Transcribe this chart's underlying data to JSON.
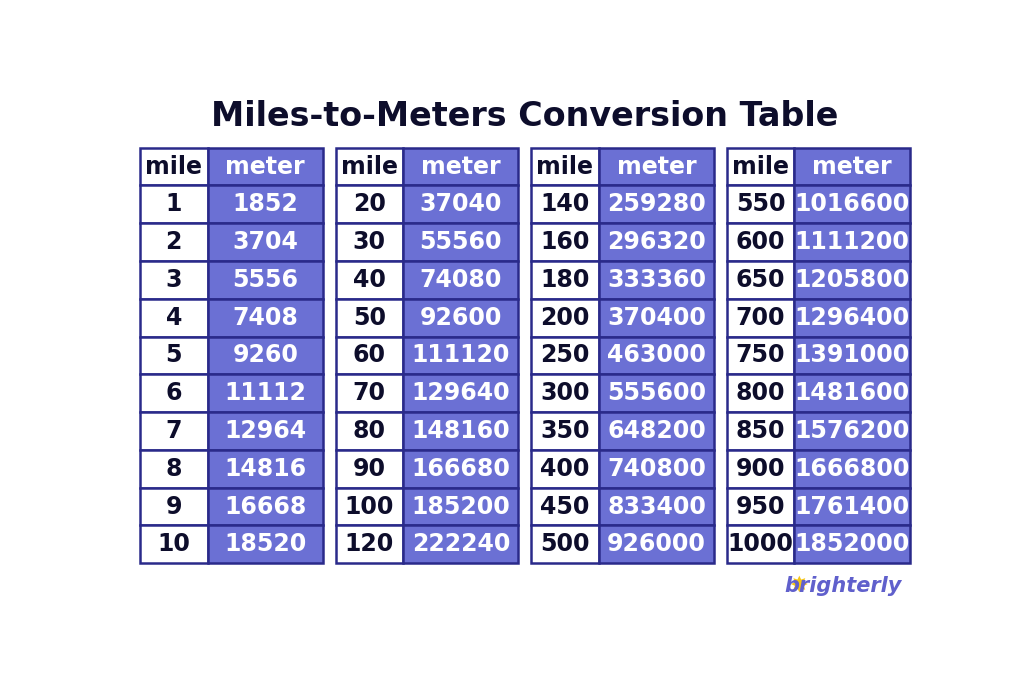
{
  "title": "Miles-to-Meters Conversion Table",
  "title_fontsize": 24,
  "title_fontweight": "bold",
  "title_color": "#0d0d2b",
  "bg_color": "#ffffff",
  "header_bg_mile": "#ffffff",
  "header_bg_meter": "#6b70d4",
  "header_text_mile_color": "#0d0d2b",
  "header_text_meter_color": "#ffffff",
  "cell_bg_mile": "#ffffff",
  "cell_bg_meter": "#6b70d4",
  "cell_text_mile_color": "#0d0d2b",
  "cell_text_meter_color": "#ffffff",
  "border_color": "#2a2a8a",
  "tables": [
    {
      "miles": [
        1,
        2,
        3,
        4,
        5,
        6,
        7,
        8,
        9,
        10
      ],
      "meters": [
        1852,
        3704,
        5556,
        7408,
        9260,
        11112,
        12964,
        14816,
        16668,
        18520
      ]
    },
    {
      "miles": [
        20,
        30,
        40,
        50,
        60,
        70,
        80,
        90,
        100,
        120
      ],
      "meters": [
        37040,
        55560,
        74080,
        92600,
        111120,
        129640,
        148160,
        166680,
        185200,
        222240
      ]
    },
    {
      "miles": [
        140,
        160,
        180,
        200,
        250,
        300,
        350,
        400,
        450,
        500
      ],
      "meters": [
        259280,
        296320,
        333360,
        370400,
        463000,
        555600,
        648200,
        740800,
        833400,
        926000
      ]
    },
    {
      "miles": [
        550,
        600,
        650,
        700,
        750,
        800,
        850,
        900,
        950,
        1000
      ],
      "meters": [
        1016600,
        1111200,
        1205800,
        1296400,
        1391000,
        1481600,
        1576200,
        1666800,
        1761400,
        1852000
      ]
    }
  ],
  "num_rows": 10,
  "num_tables": 4,
  "data_fontsize": 17,
  "header_fontsize": 17,
  "brighterly_color": "#6060cc",
  "brighterly_sun_color": "#f5c518"
}
